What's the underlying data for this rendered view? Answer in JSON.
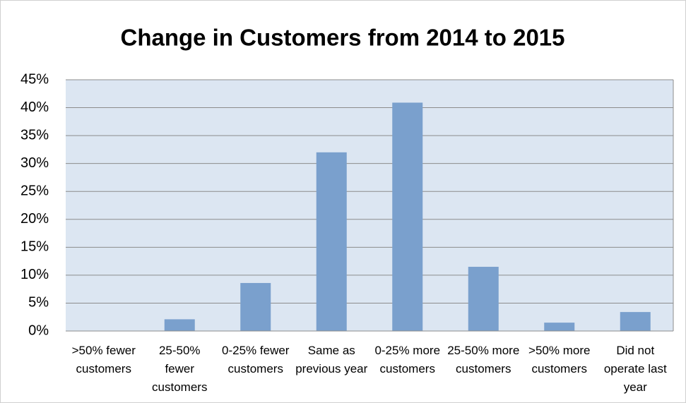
{
  "chart_data": {
    "type": "bar",
    "title": "Change in Customers from 2014 to 2015",
    "categories": [
      ">50% fewer customers",
      "25-50% fewer customers",
      "0-25% fewer customers",
      "Same as previous year",
      "0-25% more customers",
      "25-50% more customers",
      ">50% more customers",
      "Did not operate last year"
    ],
    "values": [
      0,
      2.1,
      8.6,
      32,
      40.9,
      11.5,
      1.5,
      3.4
    ],
    "color": "#7aa0cd",
    "ylim": [
      0,
      45
    ],
    "yticks": [
      {
        "value": 0,
        "label": "0%"
      },
      {
        "value": 5,
        "label": "5%"
      },
      {
        "value": 10,
        "label": "10%"
      },
      {
        "value": 15,
        "label": "15%"
      },
      {
        "value": 20,
        "label": "20%"
      },
      {
        "value": 25,
        "label": "25%"
      },
      {
        "value": 30,
        "label": "30%"
      },
      {
        "value": 35,
        "label": "35%"
      },
      {
        "value": 40,
        "label": "40%"
      },
      {
        "value": 45,
        "label": "45%"
      }
    ],
    "grid": true
  }
}
